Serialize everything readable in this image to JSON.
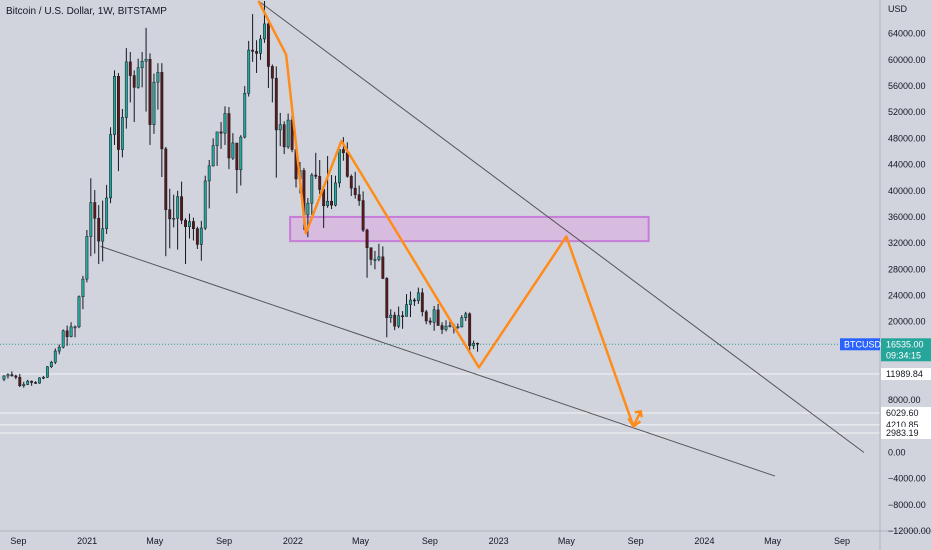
{
  "header": {
    "title": "Bitcoin / U.S. Dollar, 1W, BITSTAMP"
  },
  "chart_data": {
    "type": "candlestick",
    "title": "Bitcoin / U.S. Dollar, 1W, BITSTAMP",
    "currency": "USD",
    "ylim": [
      -12000,
      69000
    ],
    "y_ticks": [
      64000,
      60000,
      56000,
      52000,
      48000,
      44000,
      40000,
      36000,
      32000,
      28000,
      24000,
      20000,
      8000,
      0,
      -4000,
      -8000,
      -12000
    ],
    "y_tick_labels": [
      "64000.00",
      "60000.00",
      "56000.00",
      "52000.00",
      "48000.00",
      "44000.00",
      "40000.00",
      "36000.00",
      "32000.00",
      "28000.00",
      "24000.00",
      "20000.00",
      "8000.00",
      "0.00",
      "−4000.00",
      "−8000.00",
      "−12000.00"
    ],
    "x_ticks": [
      {
        "label": "Sep",
        "date": "2020-09"
      },
      {
        "label": "2021",
        "date": "2021-01"
      },
      {
        "label": "May",
        "date": "2021-05"
      },
      {
        "label": "Sep",
        "date": "2021-09"
      },
      {
        "label": "2022",
        "date": "2022-01"
      },
      {
        "label": "May",
        "date": "2022-05"
      },
      {
        "label": "Sep",
        "date": "2022-09"
      },
      {
        "label": "2023",
        "date": "2023-01"
      },
      {
        "label": "May",
        "date": "2023-05"
      },
      {
        "label": "Sep",
        "date": "2023-09"
      },
      {
        "label": "2024",
        "date": "2024-01"
      },
      {
        "label": "May",
        "date": "2024-05"
      },
      {
        "label": "Sep",
        "date": "2024-09"
      }
    ],
    "candles": [
      [
        "2020-08-03",
        11200,
        11800,
        10900,
        11700
      ],
      [
        "2020-08-10",
        11700,
        12100,
        11300,
        11900
      ],
      [
        "2020-08-17",
        11900,
        12400,
        11600,
        11700
      ],
      [
        "2020-08-24",
        11700,
        11900,
        11200,
        11500
      ],
      [
        "2020-08-31",
        11500,
        12000,
        10000,
        10200
      ],
      [
        "2020-09-07",
        10200,
        10800,
        9900,
        10400
      ],
      [
        "2020-09-14",
        10400,
        11100,
        10300,
        10900
      ],
      [
        "2020-09-21",
        10900,
        11000,
        10200,
        10700
      ],
      [
        "2020-09-28",
        10700,
        10900,
        10500,
        10600
      ],
      [
        "2020-10-05",
        10600,
        11500,
        10500,
        11400
      ],
      [
        "2020-10-12",
        11400,
        11700,
        11200,
        11500
      ],
      [
        "2020-10-19",
        11500,
        13200,
        11400,
        13100
      ],
      [
        "2020-10-26",
        13100,
        14000,
        12900,
        13800
      ],
      [
        "2020-11-02",
        13800,
        15900,
        13500,
        15500
      ],
      [
        "2020-11-09",
        15500,
        16500,
        15000,
        16100
      ],
      [
        "2020-11-16",
        16100,
        18800,
        15900,
        18600
      ],
      [
        "2020-11-23",
        18600,
        19400,
        16300,
        17700
      ],
      [
        "2020-11-30",
        17700,
        19900,
        17600,
        19200
      ],
      [
        "2020-12-07",
        19200,
        19400,
        17600,
        19200
      ],
      [
        "2020-12-14",
        19200,
        24000,
        19000,
        23800
      ],
      [
        "2020-12-21",
        23800,
        27000,
        21900,
        26500
      ],
      [
        "2020-12-28",
        26500,
        34000,
        26000,
        33000
      ],
      [
        "2021-01-04",
        33000,
        41900,
        30000,
        38200
      ],
      [
        "2021-01-11",
        38200,
        40100,
        30400,
        35800
      ],
      [
        "2021-01-18",
        35800,
        37800,
        28800,
        32300
      ],
      [
        "2021-01-25",
        32300,
        38500,
        29200,
        34200
      ],
      [
        "2021-02-01",
        34200,
        40900,
        33400,
        38900
      ],
      [
        "2021-02-08",
        38900,
        49700,
        38100,
        48600
      ],
      [
        "2021-02-15",
        48600,
        58400,
        47000,
        57500
      ],
      [
        "2021-02-22",
        57500,
        58000,
        43000,
        46300
      ],
      [
        "2021-03-01",
        46300,
        52500,
        45100,
        51200
      ],
      [
        "2021-03-08",
        51200,
        61800,
        49500,
        59700
      ],
      [
        "2021-03-15",
        59700,
        61200,
        53500,
        57600
      ],
      [
        "2021-03-22",
        57600,
        58400,
        50500,
        55800
      ],
      [
        "2021-03-29",
        55800,
        60200,
        55600,
        58800
      ],
      [
        "2021-04-05",
        58800,
        61200,
        55800,
        59800
      ],
      [
        "2021-04-12",
        59800,
        64900,
        52100,
        60100
      ],
      [
        "2021-04-19",
        60100,
        61000,
        47000,
        50100
      ],
      [
        "2021-04-26",
        50100,
        57900,
        48700,
        56600
      ],
      [
        "2021-05-03",
        56600,
        59500,
        52400,
        58100
      ],
      [
        "2021-05-10",
        58100,
        59500,
        42100,
        46400
      ],
      [
        "2021-05-17",
        46400,
        46700,
        30000,
        37100
      ],
      [
        "2021-05-24",
        37100,
        40300,
        31200,
        35700
      ],
      [
        "2021-05-31",
        35700,
        39400,
        34400,
        35800
      ],
      [
        "2021-06-07",
        35800,
        40000,
        31000,
        39100
      ],
      [
        "2021-06-14",
        39100,
        41400,
        34900,
        35500
      ],
      [
        "2021-06-21",
        35500,
        35800,
        28800,
        34500
      ],
      [
        "2021-06-28",
        34500,
        36500,
        32700,
        35300
      ],
      [
        "2021-07-05",
        35300,
        35900,
        32400,
        34200
      ],
      [
        "2021-07-12",
        34200,
        34500,
        31100,
        31800
      ],
      [
        "2021-07-19",
        31800,
        35400,
        29300,
        34300
      ],
      [
        "2021-07-26",
        34300,
        42300,
        34000,
        41500
      ],
      [
        "2021-08-02",
        41500,
        44700,
        37300,
        43800
      ],
      [
        "2021-08-09",
        43800,
        48000,
        43700,
        46900
      ],
      [
        "2021-08-16",
        46900,
        48200,
        43800,
        49000
      ],
      [
        "2021-08-23",
        49000,
        50500,
        46400,
        48800
      ],
      [
        "2021-08-30",
        48800,
        52900,
        47000,
        51800
      ],
      [
        "2021-09-06",
        51800,
        52800,
        43300,
        45000
      ],
      [
        "2021-09-13",
        45000,
        48800,
        44700,
        47300
      ],
      [
        "2021-09-20",
        47300,
        47300,
        39600,
        43200
      ],
      [
        "2021-09-27",
        43200,
        48500,
        40800,
        48200
      ],
      [
        "2021-10-04",
        48200,
        56000,
        48000,
        54900
      ],
      [
        "2021-10-11",
        54900,
        62900,
        54400,
        61500
      ],
      [
        "2021-10-18",
        61500,
        67000,
        59700,
        61300
      ],
      [
        "2021-10-25",
        61300,
        63000,
        58000,
        61000
      ],
      [
        "2021-11-01",
        61000,
        63800,
        60000,
        63200
      ],
      [
        "2021-11-08",
        63200,
        69000,
        62600,
        65500
      ],
      [
        "2021-11-15",
        65500,
        66200,
        55700,
        59000
      ],
      [
        "2021-11-22",
        59000,
        59300,
        53500,
        57200
      ],
      [
        "2021-11-29",
        57200,
        59000,
        42000,
        49300
      ],
      [
        "2021-12-06",
        49300,
        51900,
        46800,
        50100
      ],
      [
        "2021-12-13",
        50100,
        50600,
        45600,
        46700
      ],
      [
        "2021-12-20",
        46700,
        51800,
        46400,
        50800
      ],
      [
        "2021-12-27",
        50800,
        52000,
        45900,
        46300
      ],
      [
        "2022-01-03",
        46300,
        47500,
        40500,
        41800
      ],
      [
        "2022-01-10",
        41800,
        44400,
        39600,
        43100
      ],
      [
        "2022-01-17",
        43100,
        43500,
        34000,
        36300
      ],
      [
        "2022-01-24",
        36300,
        38900,
        32900,
        38100
      ],
      [
        "2022-01-31",
        38100,
        42700,
        36300,
        42400
      ],
      [
        "2022-02-07",
        42400,
        45800,
        41800,
        42200
      ],
      [
        "2022-02-14",
        42200,
        44700,
        39500,
        40200
      ],
      [
        "2022-02-21",
        40200,
        40300,
        34300,
        37700
      ],
      [
        "2022-02-28",
        37700,
        45300,
        37400,
        38400
      ],
      [
        "2022-03-07",
        38400,
        42400,
        37200,
        37800
      ],
      [
        "2022-03-14",
        37800,
        42300,
        37600,
        41200
      ],
      [
        "2022-03-21",
        41200,
        46000,
        40500,
        46300
      ],
      [
        "2022-03-28",
        46300,
        48200,
        44600,
        45800
      ],
      [
        "2022-04-04",
        45800,
        47400,
        42000,
        42200
      ],
      [
        "2022-04-11",
        42200,
        42500,
        39200,
        40400
      ],
      [
        "2022-04-18",
        40400,
        42900,
        38800,
        39400
      ],
      [
        "2022-04-25",
        39400,
        40800,
        37700,
        38500
      ],
      [
        "2022-05-02",
        38500,
        39900,
        33700,
        34000
      ],
      [
        "2022-05-09",
        34000,
        34200,
        26700,
        31300
      ],
      [
        "2022-05-16",
        31300,
        31300,
        28600,
        29500
      ],
      [
        "2022-05-23",
        29500,
        30800,
        28000,
        29500
      ],
      [
        "2022-05-30",
        29500,
        31900,
        29200,
        29900
      ],
      [
        "2022-06-06",
        29900,
        31500,
        26500,
        26600
      ],
      [
        "2022-06-13",
        26600,
        26800,
        17600,
        20600
      ],
      [
        "2022-06-20",
        20600,
        21900,
        19800,
        21000
      ],
      [
        "2022-06-27",
        21000,
        21500,
        18700,
        19300
      ],
      [
        "2022-07-04",
        19300,
        22300,
        19000,
        20900
      ],
      [
        "2022-07-11",
        20900,
        21600,
        18900,
        20800
      ],
      [
        "2022-07-18",
        20800,
        24200,
        20800,
        22600
      ],
      [
        "2022-07-25",
        22600,
        24600,
        20700,
        23300
      ],
      [
        "2022-08-01",
        23300,
        23600,
        22400,
        23200
      ],
      [
        "2022-08-08",
        23200,
        25200,
        22700,
        24400
      ],
      [
        "2022-08-15",
        24400,
        25100,
        20800,
        21500
      ],
      [
        "2022-08-22",
        21500,
        21800,
        19600,
        20100
      ],
      [
        "2022-08-29",
        20100,
        20600,
        19500,
        19900
      ],
      [
        "2022-09-05",
        19900,
        22400,
        18600,
        21800
      ],
      [
        "2022-09-12",
        21800,
        22700,
        19400,
        19400
      ],
      [
        "2022-09-19",
        19400,
        19900,
        18100,
        18800
      ],
      [
        "2022-09-26",
        18800,
        20200,
        18500,
        19300
      ],
      [
        "2022-10-03",
        19300,
        20400,
        19100,
        19400
      ],
      [
        "2022-10-10",
        19400,
        19700,
        18200,
        19100
      ],
      [
        "2022-10-17",
        19100,
        19700,
        18900,
        19200
      ],
      [
        "2022-10-24",
        19200,
        21000,
        19100,
        20600
      ],
      [
        "2022-10-31",
        20600,
        21500,
        20100,
        21200
      ],
      [
        "2022-11-07",
        21200,
        21400,
        15500,
        16300
      ],
      [
        "2022-11-14",
        16300,
        17100,
        15800,
        16700
      ],
      [
        "2022-11-21",
        16700,
        16800,
        15400,
        16535
      ]
    ],
    "horizontal_levels": [
      {
        "value": 11989.84,
        "label": "11989.84"
      },
      {
        "value": 6029.6,
        "label": "6029.60"
      },
      {
        "value": 4210.85,
        "label": "4210.85"
      },
      {
        "value": 2983.19,
        "label": "2983.19"
      }
    ],
    "last_price": {
      "symbol": "BTCUSD",
      "value": 16535.0,
      "label": "16535.00",
      "countdown": "09:34:15"
    },
    "resistance_zone": {
      "from_date": "2021-12-27",
      "to_date": "2023-09-24",
      "low": 32300,
      "high": 36000
    },
    "trendlines": [
      {
        "name": "upper",
        "from": [
          "2021-11-01",
          69000
        ],
        "to": [
          "2024-10-10",
          0
        ]
      },
      {
        "name": "lower",
        "from": [
          "2021-01-25",
          31500
        ],
        "to": [
          "2024-05-05",
          -3600
        ]
      }
    ],
    "projection_path": [
      [
        "2021-11-01",
        69000
      ],
      [
        "2021-12-20",
        60800
      ],
      [
        "2022-01-24",
        33500
      ],
      [
        "2022-03-28",
        47600
      ],
      [
        "2022-11-27",
        13000
      ],
      [
        "2023-05-01",
        33000
      ],
      [
        "2023-08-28",
        4000
      ],
      [
        "2023-09-10",
        6300
      ]
    ],
    "colors": {
      "up": "#26a69a",
      "down": "#ef5350",
      "candle_draw": "#131722",
      "projection": "#ff8c1a",
      "zone_fill": "#d8b4e2",
      "zone_border": "#c77dd8",
      "trendline": "#555555",
      "last_price": "#2962ff"
    }
  }
}
